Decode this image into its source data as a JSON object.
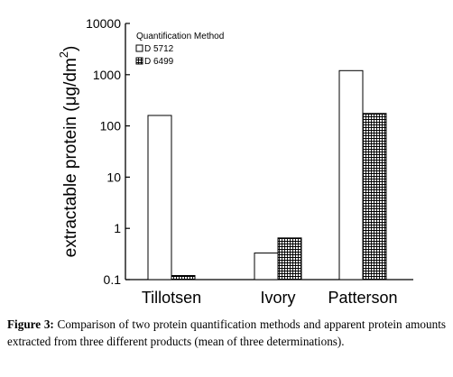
{
  "chart_data": {
    "type": "bar",
    "categories": [
      "Tillotsen",
      "Ivory",
      "Patterson"
    ],
    "series": [
      {
        "name": "D 5712",
        "values": [
          160,
          0.33,
          1200
        ],
        "pattern": "open"
      },
      {
        "name": "D 6499",
        "values": [
          0.12,
          0.65,
          175
        ],
        "pattern": "crosshatch"
      }
    ],
    "title": "",
    "xlabel": "",
    "ylabel": "extractable protein (μg/dm",
    "ylabel_superscript": "2",
    "ylabel_close": ")",
    "y_scale": "log",
    "ylim": [
      0.1,
      10000
    ],
    "yticks": [
      {
        "value": 0.1,
        "label": "0.1"
      },
      {
        "value": 1,
        "label": "1"
      },
      {
        "value": 10,
        "label": "10"
      },
      {
        "value": 100,
        "label": "100"
      },
      {
        "value": 1000,
        "label": "1000"
      },
      {
        "value": 10000,
        "label": "10000"
      }
    ],
    "legend_title": "Quantification Method",
    "legend_position": "top-left",
    "grid": false
  },
  "caption": {
    "label": "Figure 3:",
    "text": " Comparison of two protein quantification methods and apparent protein amounts extracted from three different products (mean of three determinations)."
  }
}
